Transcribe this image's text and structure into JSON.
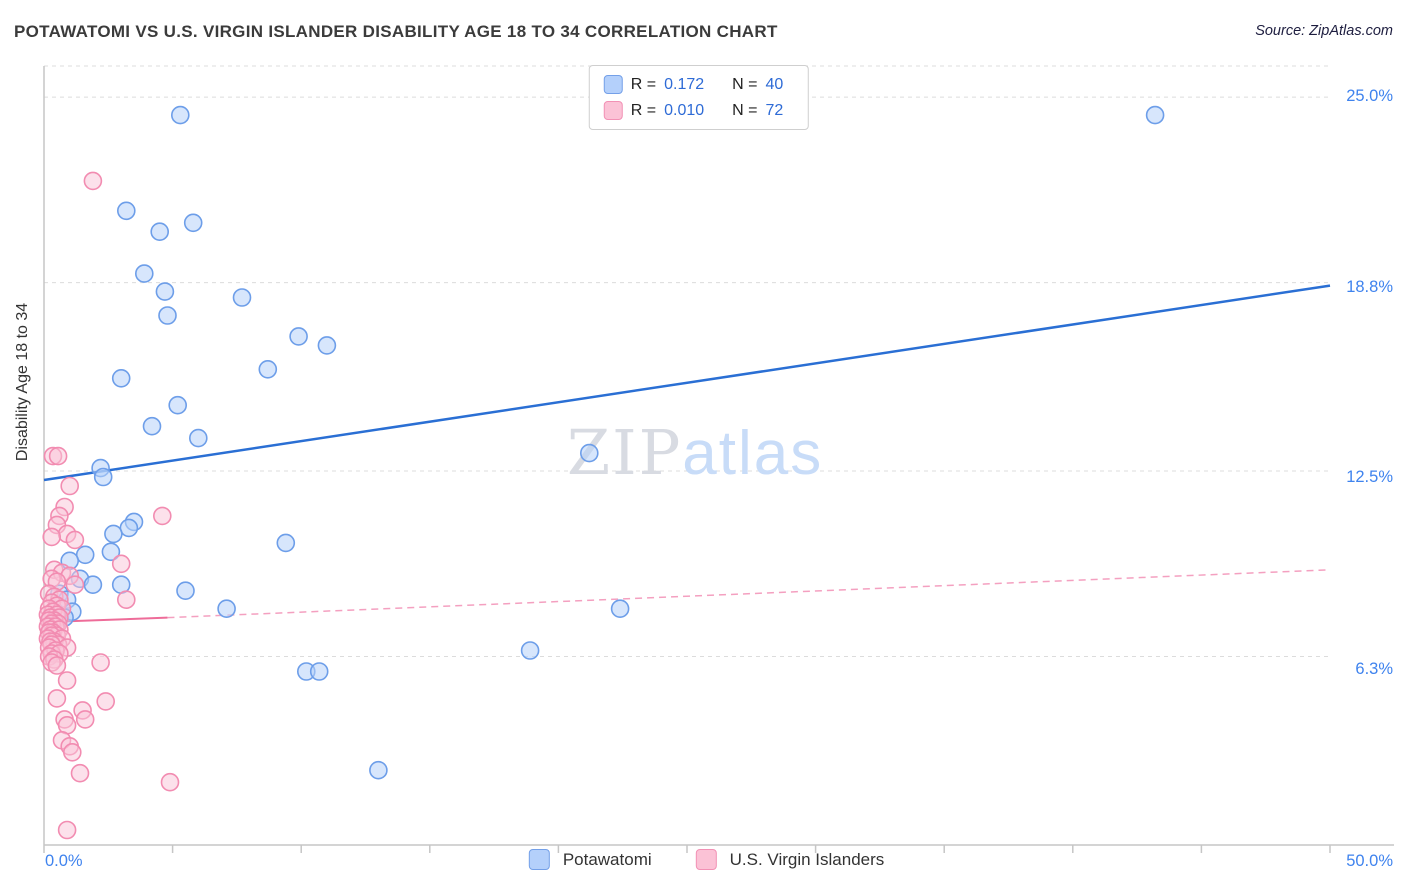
{
  "header": {
    "title": "POTAWATOMI VS U.S. VIRGIN ISLANDER DISABILITY AGE 18 TO 34 CORRELATION CHART",
    "source": "Source: ZipAtlas.com"
  },
  "legend_box": {
    "rows": [
      {
        "r_label": "R =",
        "r": "0.172",
        "n_label": "N =",
        "n": "40"
      },
      {
        "r_label": "R =",
        "r": "0.010",
        "n_label": "N =",
        "n": "72"
      }
    ]
  },
  "watermark": {
    "zip": "ZIP",
    "atlas": "atlas"
  },
  "axes": {
    "y_label": "Disability Age 18 to 34",
    "y_ticks": [
      "25.0%",
      "18.8%",
      "12.5%",
      "6.3%"
    ],
    "x_min_label": "0.0%",
    "x_max_label": "50.0%"
  },
  "bottom_legend": {
    "items": [
      {
        "label": "Potawatomi"
      },
      {
        "label": "U.S. Virgin Islanders"
      }
    ]
  },
  "chart_data": {
    "type": "scatter",
    "title": "POTAWATOMI VS U.S. VIRGIN ISLANDER DISABILITY AGE 18 TO 34 CORRELATION CHART",
    "xlabel": "",
    "ylabel": "Disability Age 18 to 34",
    "xlim": [
      0,
      50
    ],
    "ylim": [
      0,
      26.04
    ],
    "x_tick_step": 5,
    "grid": true,
    "legend_position": "bottom-center",
    "y_gridlines": [
      25.0,
      18.8,
      12.5,
      6.3
    ],
    "y_tick_labels": [
      "25.0%",
      "18.8%",
      "12.5%",
      "6.3%"
    ],
    "series": [
      {
        "name": "Potawatomi",
        "R": 0.172,
        "N": 40,
        "stroke": "#6d9ee9",
        "fill": "#b6d1fa",
        "fill_opacity": 0.55,
        "point_name": "potawatomi-point",
        "points": [
          [
            5.3,
            24.4
          ],
          [
            43.2,
            24.4
          ],
          [
            3.2,
            21.2
          ],
          [
            5.8,
            20.8
          ],
          [
            4.5,
            20.5
          ],
          [
            3.9,
            19.1
          ],
          [
            4.7,
            18.5
          ],
          [
            4.8,
            17.7
          ],
          [
            7.7,
            18.3
          ],
          [
            9.9,
            17.0
          ],
          [
            11.0,
            16.7
          ],
          [
            8.7,
            15.9
          ],
          [
            3.0,
            15.6
          ],
          [
            5.2,
            14.7
          ],
          [
            4.2,
            14.0
          ],
          [
            6.0,
            13.6
          ],
          [
            21.2,
            13.1
          ],
          [
            2.2,
            12.6
          ],
          [
            2.3,
            12.3
          ],
          [
            3.5,
            10.8
          ],
          [
            3.3,
            10.6
          ],
          [
            2.7,
            10.4
          ],
          [
            2.6,
            9.8
          ],
          [
            1.6,
            9.7
          ],
          [
            1.0,
            9.5
          ],
          [
            9.4,
            10.1
          ],
          [
            1.4,
            8.9
          ],
          [
            1.9,
            8.7
          ],
          [
            3.0,
            8.7
          ],
          [
            0.6,
            8.4
          ],
          [
            0.9,
            8.2
          ],
          [
            5.5,
            8.5
          ],
          [
            1.1,
            7.8
          ],
          [
            7.1,
            7.9
          ],
          [
            22.4,
            7.9
          ],
          [
            18.9,
            6.5
          ],
          [
            10.2,
            5.8
          ],
          [
            10.7,
            5.8
          ],
          [
            13.0,
            2.5
          ],
          [
            0.8,
            7.6
          ]
        ]
      },
      {
        "name": "U.S. Virgin Islanders",
        "R": 0.01,
        "N": 72,
        "stroke": "#f28cb1",
        "fill": "#fac3d7",
        "fill_opacity": 0.5,
        "point_name": "virgin-islander-point",
        "points": [
          [
            1.9,
            22.2
          ],
          [
            0.35,
            13.0
          ],
          [
            0.55,
            13.0
          ],
          [
            1.0,
            12.0
          ],
          [
            4.6,
            11.0
          ],
          [
            0.8,
            11.3
          ],
          [
            0.6,
            11.0
          ],
          [
            0.5,
            10.7
          ],
          [
            0.9,
            10.4
          ],
          [
            0.3,
            10.3
          ],
          [
            1.2,
            10.2
          ],
          [
            3.0,
            9.4
          ],
          [
            0.4,
            9.2
          ],
          [
            0.7,
            9.1
          ],
          [
            1.0,
            9.0
          ],
          [
            0.3,
            8.9
          ],
          [
            0.5,
            8.8
          ],
          [
            1.2,
            8.7
          ],
          [
            3.2,
            8.2
          ],
          [
            0.2,
            8.4
          ],
          [
            0.4,
            8.3
          ],
          [
            0.6,
            8.2
          ],
          [
            0.3,
            8.1
          ],
          [
            0.5,
            8.0
          ],
          [
            0.2,
            7.9
          ],
          [
            0.7,
            7.9
          ],
          [
            0.35,
            7.8
          ],
          [
            0.15,
            7.7
          ],
          [
            0.5,
            7.7
          ],
          [
            0.25,
            7.6
          ],
          [
            0.6,
            7.6
          ],
          [
            0.4,
            7.5
          ],
          [
            0.2,
            7.5
          ],
          [
            0.55,
            7.4
          ],
          [
            0.3,
            7.4
          ],
          [
            0.15,
            7.3
          ],
          [
            0.45,
            7.3
          ],
          [
            0.25,
            7.2
          ],
          [
            0.6,
            7.2
          ],
          [
            0.35,
            7.1
          ],
          [
            0.2,
            7.1
          ],
          [
            0.5,
            7.0
          ],
          [
            0.3,
            7.0
          ],
          [
            0.15,
            6.9
          ],
          [
            0.7,
            6.9
          ],
          [
            0.4,
            6.8
          ],
          [
            0.25,
            6.8
          ],
          [
            0.55,
            6.7
          ],
          [
            0.3,
            6.7
          ],
          [
            0.2,
            6.6
          ],
          [
            0.9,
            6.6
          ],
          [
            0.45,
            6.5
          ],
          [
            0.3,
            6.4
          ],
          [
            0.6,
            6.4
          ],
          [
            0.2,
            6.3
          ],
          [
            0.4,
            6.2
          ],
          [
            2.2,
            6.1
          ],
          [
            0.3,
            6.1
          ],
          [
            0.5,
            6.0
          ],
          [
            0.9,
            5.5
          ],
          [
            0.5,
            4.9
          ],
          [
            1.5,
            4.5
          ],
          [
            0.8,
            4.2
          ],
          [
            2.4,
            4.8
          ],
          [
            1.6,
            4.2
          ],
          [
            0.9,
            4.0
          ],
          [
            0.7,
            3.5
          ],
          [
            1.0,
            3.3
          ],
          [
            1.1,
            3.1
          ],
          [
            1.4,
            2.4
          ],
          [
            4.9,
            2.1
          ],
          [
            0.9,
            0.5
          ]
        ]
      }
    ],
    "trend_lines": [
      {
        "series": "Potawatomi",
        "x": [
          0,
          50
        ],
        "y": [
          12.2,
          18.7
        ],
        "color": "#2a6fd4",
        "width": 2.5,
        "dash": null
      },
      {
        "series": "U.S. Virgin Islanders",
        "x": [
          0,
          4.8
        ],
        "y": [
          7.45,
          7.6
        ],
        "color": "#ee6c99",
        "width": 2,
        "dash": null
      },
      {
        "series": "U.S. Virgin Islanders",
        "x": [
          4.8,
          50
        ],
        "y": [
          7.6,
          9.2
        ],
        "color": "#f4a0c0",
        "width": 1.5,
        "dash": "7 5"
      }
    ]
  }
}
